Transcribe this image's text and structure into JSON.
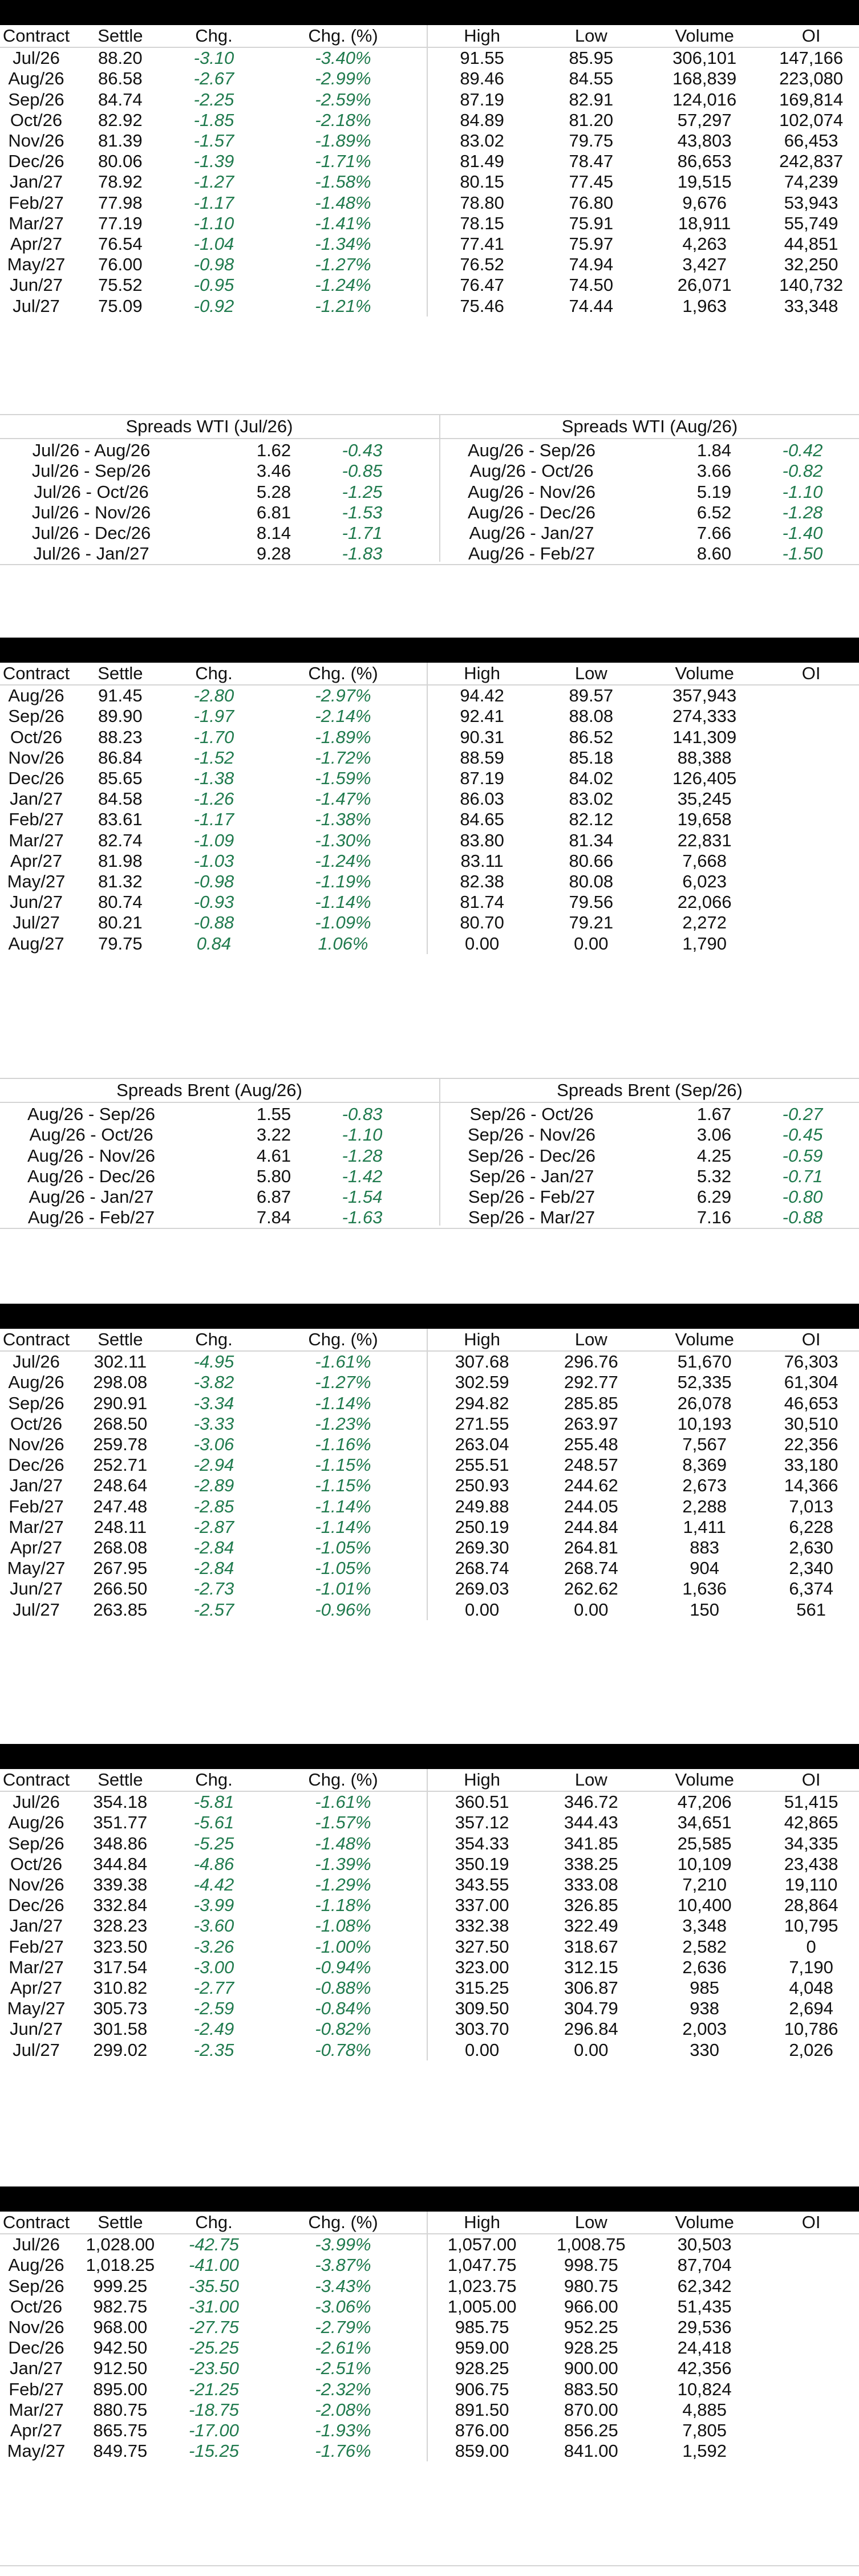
{
  "headers": [
    "Contract",
    "Settle",
    "Chg.",
    "Chg. (%)",
    "High",
    "Low",
    "Volume",
    "OI"
  ],
  "colors": {
    "change": "#1f7a4d",
    "bar": "#000000",
    "rule": "#d4d4d4"
  },
  "tables": [
    {
      "rows": [
        [
          "Jul/26",
          "88.20",
          "-3.10",
          "-3.40%",
          "91.55",
          "85.95",
          "306,101",
          "147,166"
        ],
        [
          "Aug/26",
          "86.58",
          "-2.67",
          "-2.99%",
          "89.46",
          "84.55",
          "168,839",
          "223,080"
        ],
        [
          "Sep/26",
          "84.74",
          "-2.25",
          "-2.59%",
          "87.19",
          "82.91",
          "124,016",
          "169,814"
        ],
        [
          "Oct/26",
          "82.92",
          "-1.85",
          "-2.18%",
          "84.89",
          "81.20",
          "57,297",
          "102,074"
        ],
        [
          "Nov/26",
          "81.39",
          "-1.57",
          "-1.89%",
          "83.02",
          "79.75",
          "43,803",
          "66,453"
        ],
        [
          "Dec/26",
          "80.06",
          "-1.39",
          "-1.71%",
          "81.49",
          "78.47",
          "86,653",
          "242,837"
        ],
        [
          "Jan/27",
          "78.92",
          "-1.27",
          "-1.58%",
          "80.15",
          "77.45",
          "19,515",
          "74,239"
        ],
        [
          "Feb/27",
          "77.98",
          "-1.17",
          "-1.48%",
          "78.80",
          "76.80",
          "9,676",
          "53,943"
        ],
        [
          "Mar/27",
          "77.19",
          "-1.10",
          "-1.41%",
          "78.15",
          "75.91",
          "18,911",
          "55,749"
        ],
        [
          "Apr/27",
          "76.54",
          "-1.04",
          "-1.34%",
          "77.41",
          "75.97",
          "4,263",
          "44,851"
        ],
        [
          "May/27",
          "76.00",
          "-0.98",
          "-1.27%",
          "76.52",
          "74.94",
          "3,427",
          "32,250"
        ],
        [
          "Jun/27",
          "75.52",
          "-0.95",
          "-1.24%",
          "76.47",
          "74.50",
          "26,071",
          "140,732"
        ],
        [
          "Jul/27",
          "75.09",
          "-0.92",
          "-1.21%",
          "75.46",
          "74.44",
          "1,963",
          "33,348"
        ]
      ]
    },
    {
      "rows": [
        [
          "Aug/26",
          "91.45",
          "-2.80",
          "-2.97%",
          "94.42",
          "89.57",
          "357,943",
          ""
        ],
        [
          "Sep/26",
          "89.90",
          "-1.97",
          "-2.14%",
          "92.41",
          "88.08",
          "274,333",
          ""
        ],
        [
          "Oct/26",
          "88.23",
          "-1.70",
          "-1.89%",
          "90.31",
          "86.52",
          "141,309",
          ""
        ],
        [
          "Nov/26",
          "86.84",
          "-1.52",
          "-1.72%",
          "88.59",
          "85.18",
          "88,388",
          ""
        ],
        [
          "Dec/26",
          "85.65",
          "-1.38",
          "-1.59%",
          "87.19",
          "84.02",
          "126,405",
          ""
        ],
        [
          "Jan/27",
          "84.58",
          "-1.26",
          "-1.47%",
          "86.03",
          "83.02",
          "35,245",
          ""
        ],
        [
          "Feb/27",
          "83.61",
          "-1.17",
          "-1.38%",
          "84.65",
          "82.12",
          "19,658",
          ""
        ],
        [
          "Mar/27",
          "82.74",
          "-1.09",
          "-1.30%",
          "83.80",
          "81.34",
          "22,831",
          ""
        ],
        [
          "Apr/27",
          "81.98",
          "-1.03",
          "-1.24%",
          "83.11",
          "80.66",
          "7,668",
          ""
        ],
        [
          "May/27",
          "81.32",
          "-0.98",
          "-1.19%",
          "82.38",
          "80.08",
          "6,023",
          ""
        ],
        [
          "Jun/27",
          "80.74",
          "-0.93",
          "-1.14%",
          "81.74",
          "79.56",
          "22,066",
          ""
        ],
        [
          "Jul/27",
          "80.21",
          "-0.88",
          "-1.09%",
          "80.70",
          "79.21",
          "2,272",
          ""
        ],
        [
          "Aug/27",
          "79.75",
          "0.84",
          "1.06%",
          "0.00",
          "0.00",
          "1,790",
          ""
        ]
      ]
    },
    {
      "rows": [
        [
          "Jul/26",
          "302.11",
          "-4.95",
          "-1.61%",
          "307.68",
          "296.76",
          "51,670",
          "76,303"
        ],
        [
          "Aug/26",
          "298.08",
          "-3.82",
          "-1.27%",
          "302.59",
          "292.77",
          "52,335",
          "61,304"
        ],
        [
          "Sep/26",
          "290.91",
          "-3.34",
          "-1.14%",
          "294.82",
          "285.85",
          "26,078",
          "46,653"
        ],
        [
          "Oct/26",
          "268.50",
          "-3.33",
          "-1.23%",
          "271.55",
          "263.97",
          "10,193",
          "30,510"
        ],
        [
          "Nov/26",
          "259.78",
          "-3.06",
          "-1.16%",
          "263.04",
          "255.48",
          "7,567",
          "22,356"
        ],
        [
          "Dec/26",
          "252.71",
          "-2.94",
          "-1.15%",
          "255.51",
          "248.57",
          "8,369",
          "33,180"
        ],
        [
          "Jan/27",
          "248.64",
          "-2.89",
          "-1.15%",
          "250.93",
          "244.62",
          "2,673",
          "14,366"
        ],
        [
          "Feb/27",
          "247.48",
          "-2.85",
          "-1.14%",
          "249.88",
          "244.05",
          "2,288",
          "7,013"
        ],
        [
          "Mar/27",
          "248.11",
          "-2.87",
          "-1.14%",
          "250.19",
          "244.84",
          "1,411",
          "6,228"
        ],
        [
          "Apr/27",
          "268.08",
          "-2.84",
          "-1.05%",
          "269.30",
          "264.81",
          "883",
          "2,630"
        ],
        [
          "May/27",
          "267.95",
          "-2.84",
          "-1.05%",
          "268.74",
          "268.74",
          "904",
          "2,340"
        ],
        [
          "Jun/27",
          "266.50",
          "-2.73",
          "-1.01%",
          "269.03",
          "262.62",
          "1,636",
          "6,374"
        ],
        [
          "Jul/27",
          "263.85",
          "-2.57",
          "-0.96%",
          "0.00",
          "0.00",
          "150",
          "561"
        ]
      ]
    },
    {
      "rows": [
        [
          "Jul/26",
          "354.18",
          "-5.81",
          "-1.61%",
          "360.51",
          "346.72",
          "47,206",
          "51,415"
        ],
        [
          "Aug/26",
          "351.77",
          "-5.61",
          "-1.57%",
          "357.12",
          "344.43",
          "34,651",
          "42,865"
        ],
        [
          "Sep/26",
          "348.86",
          "-5.25",
          "-1.48%",
          "354.33",
          "341.85",
          "25,585",
          "34,335"
        ],
        [
          "Oct/26",
          "344.84",
          "-4.86",
          "-1.39%",
          "350.19",
          "338.25",
          "10,109",
          "23,438"
        ],
        [
          "Nov/26",
          "339.38",
          "-4.42",
          "-1.29%",
          "343.55",
          "333.08",
          "7,210",
          "19,110"
        ],
        [
          "Dec/26",
          "332.84",
          "-3.99",
          "-1.18%",
          "337.00",
          "326.85",
          "10,400",
          "28,864"
        ],
        [
          "Jan/27",
          "328.23",
          "-3.60",
          "-1.08%",
          "332.38",
          "322.49",
          "3,348",
          "10,795"
        ],
        [
          "Feb/27",
          "323.50",
          "-3.26",
          "-1.00%",
          "327.50",
          "318.67",
          "2,582",
          "0"
        ],
        [
          "Mar/27",
          "317.54",
          "-3.00",
          "-0.94%",
          "323.00",
          "312.15",
          "2,636",
          "7,190"
        ],
        [
          "Apr/27",
          "310.82",
          "-2.77",
          "-0.88%",
          "315.25",
          "306.87",
          "985",
          "4,048"
        ],
        [
          "May/27",
          "305.73",
          "-2.59",
          "-0.84%",
          "309.50",
          "304.79",
          "938",
          "2,694"
        ],
        [
          "Jun/27",
          "301.58",
          "-2.49",
          "-0.82%",
          "303.70",
          "296.84",
          "2,003",
          "10,786"
        ],
        [
          "Jul/27",
          "299.02",
          "-2.35",
          "-0.78%",
          "0.00",
          "0.00",
          "330",
          "2,026"
        ]
      ]
    },
    {
      "rows": [
        [
          "Jul/26",
          "1,028.00",
          "-42.75",
          "-3.99%",
          "1,057.00",
          "1,008.75",
          "30,503",
          ""
        ],
        [
          "Aug/26",
          "1,018.25",
          "-41.00",
          "-3.87%",
          "1,047.75",
          "998.75",
          "87,704",
          ""
        ],
        [
          "Sep/26",
          "999.25",
          "-35.50",
          "-3.43%",
          "1,023.75",
          "980.75",
          "62,342",
          ""
        ],
        [
          "Oct/26",
          "982.75",
          "-31.00",
          "-3.06%",
          "1,005.00",
          "966.00",
          "51,435",
          ""
        ],
        [
          "Nov/26",
          "968.00",
          "-27.75",
          "-2.79%",
          "985.75",
          "952.25",
          "29,536",
          ""
        ],
        [
          "Dec/26",
          "942.50",
          "-25.25",
          "-2.61%",
          "959.00",
          "928.25",
          "24,418",
          ""
        ],
        [
          "Jan/27",
          "912.50",
          "-23.50",
          "-2.51%",
          "928.25",
          "900.00",
          "42,356",
          ""
        ],
        [
          "Feb/27",
          "895.00",
          "-21.25",
          "-2.32%",
          "906.75",
          "883.50",
          "10,824",
          ""
        ],
        [
          "Mar/27",
          "880.75",
          "-18.75",
          "-2.08%",
          "891.50",
          "870.00",
          "4,885",
          ""
        ],
        [
          "Apr/27",
          "865.75",
          "-17.00",
          "-1.93%",
          "876.00",
          "856.25",
          "7,805",
          ""
        ],
        [
          "May/27",
          "849.75",
          "-15.25",
          "-1.76%",
          "859.00",
          "841.00",
          "1,592",
          ""
        ]
      ]
    }
  ],
  "spreads": [
    {
      "left_title": "Spreads WTI (Jul/26)",
      "right_title": "Spreads WTI (Aug/26)",
      "left": [
        [
          "Jul/26 - Aug/26",
          "1.62",
          "-0.43"
        ],
        [
          "Jul/26 - Sep/26",
          "3.46",
          "-0.85"
        ],
        [
          "Jul/26 - Oct/26",
          "5.28",
          "-1.25"
        ],
        [
          "Jul/26 - Nov/26",
          "6.81",
          "-1.53"
        ],
        [
          "Jul/26 - Dec/26",
          "8.14",
          "-1.71"
        ],
        [
          "Jul/26 - Jan/27",
          "9.28",
          "-1.83"
        ]
      ],
      "right": [
        [
          "Aug/26 - Sep/26",
          "1.84",
          "-0.42"
        ],
        [
          "Aug/26 - Oct/26",
          "3.66",
          "-0.82"
        ],
        [
          "Aug/26 - Nov/26",
          "5.19",
          "-1.10"
        ],
        [
          "Aug/26 - Dec/26",
          "6.52",
          "-1.28"
        ],
        [
          "Aug/26 - Jan/27",
          "7.66",
          "-1.40"
        ],
        [
          "Aug/26 - Feb/27",
          "8.60",
          "-1.50"
        ]
      ]
    },
    {
      "left_title": "Spreads Brent (Aug/26)",
      "right_title": "Spreads Brent (Sep/26)",
      "left": [
        [
          "Aug/26 - Sep/26",
          "1.55",
          "-0.83"
        ],
        [
          "Aug/26 - Oct/26",
          "3.22",
          "-1.10"
        ],
        [
          "Aug/26 - Nov/26",
          "4.61",
          "-1.28"
        ],
        [
          "Aug/26 - Dec/26",
          "5.80",
          "-1.42"
        ],
        [
          "Aug/26 - Jan/27",
          "6.87",
          "-1.54"
        ],
        [
          "Aug/26 - Feb/27",
          "7.84",
          "-1.63"
        ]
      ],
      "right": [
        [
          "Sep/26 - Oct/26",
          "1.67",
          "-0.27"
        ],
        [
          "Sep/26 - Nov/26",
          "3.06",
          "-0.45"
        ],
        [
          "Sep/26 - Dec/26",
          "4.25",
          "-0.59"
        ],
        [
          "Sep/26 - Jan/27",
          "5.32",
          "-0.71"
        ],
        [
          "Sep/26 - Feb/27",
          "6.29",
          "-0.80"
        ],
        [
          "Sep/26 - Mar/27",
          "7.16",
          "-0.88"
        ]
      ]
    }
  ]
}
